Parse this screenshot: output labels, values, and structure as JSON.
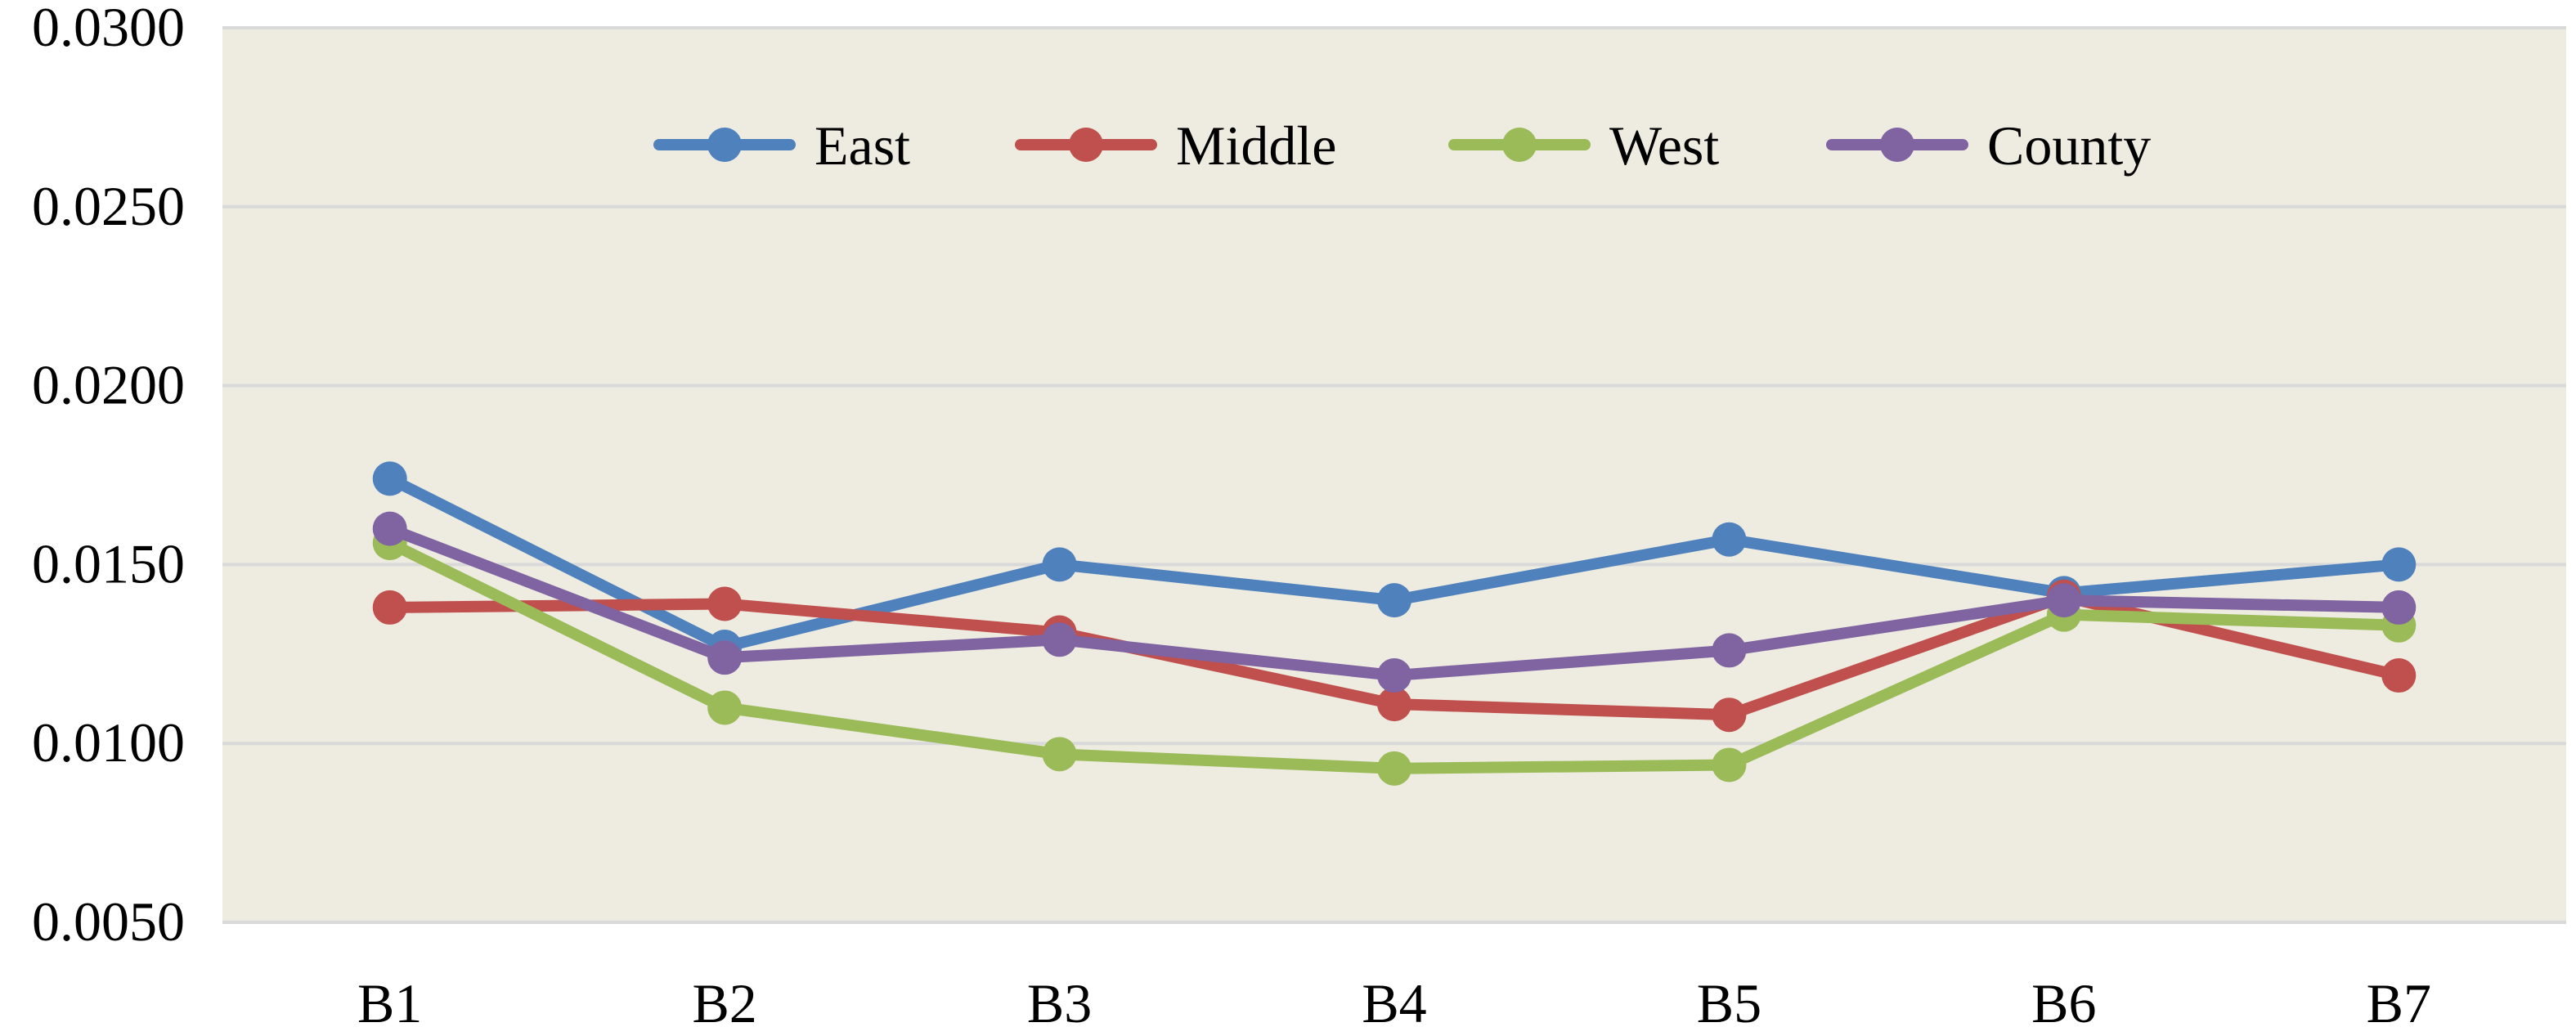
{
  "chart_data": {
    "type": "line",
    "categories": [
      "B1",
      "B2",
      "B3",
      "B4",
      "B5",
      "B6",
      "B7"
    ],
    "series": [
      {
        "name": "East",
        "color": "#4f81bd",
        "values": [
          0.0174,
          0.0127,
          0.015,
          0.014,
          0.0157,
          0.0142,
          0.015
        ]
      },
      {
        "name": "Middle",
        "color": "#c0504d",
        "values": [
          0.0138,
          0.0139,
          0.0131,
          0.0111,
          0.0108,
          0.0141,
          0.0119
        ]
      },
      {
        "name": "West",
        "color": "#9bbb59",
        "values": [
          0.0156,
          0.011,
          0.0097,
          0.0093,
          0.0094,
          0.0136,
          0.0133
        ]
      },
      {
        "name": "County",
        "color": "#8064a2",
        "values": [
          0.016,
          0.0124,
          0.0129,
          0.0119,
          0.0126,
          0.014,
          0.0138
        ]
      }
    ],
    "ylim": [
      0.005,
      0.03
    ],
    "yticks": [
      "0.0050",
      "0.0100",
      "0.0150",
      "0.0200",
      "0.0250",
      "0.0300"
    ],
    "title": "",
    "xlabel": "",
    "ylabel": "",
    "grid": true,
    "legend_position": "top-center",
    "plot_background": "#eeece1",
    "gridline_color": "#d9d9d9"
  }
}
